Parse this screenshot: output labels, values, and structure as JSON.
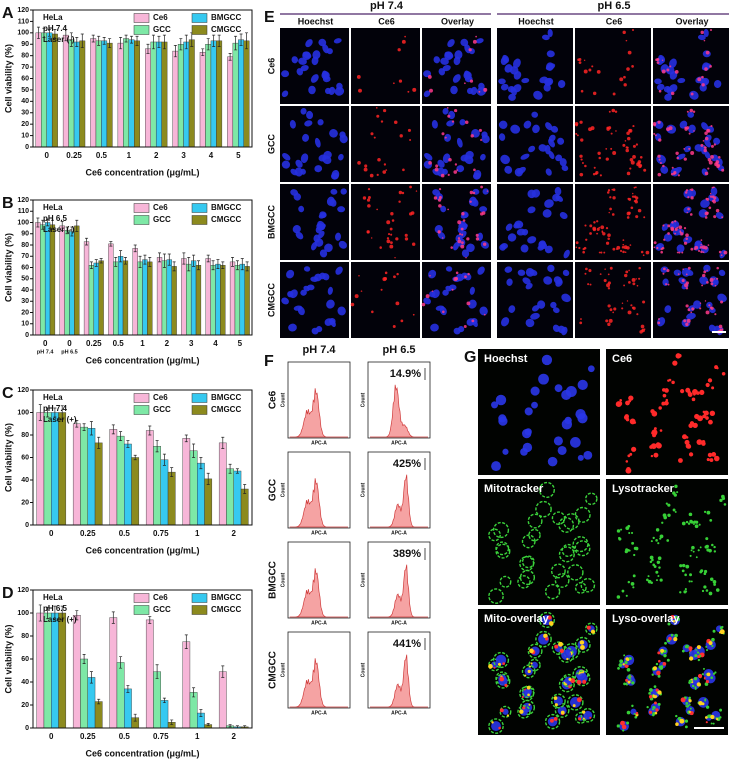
{
  "chart_data": [
    {
      "type": "bar",
      "panel": "A",
      "annotations": [
        "HeLa",
        "pH 7.4",
        "Laser (-)"
      ],
      "ylabel": "Cell viability (%)",
      "xlabel": "Ce6 concentration (μg/mL)",
      "categories": [
        "0",
        "0.25",
        "0.5",
        "1",
        "2",
        "3",
        "4",
        "5"
      ],
      "ylim": [
        0,
        120
      ],
      "yticks": [
        0,
        10,
        20,
        30,
        40,
        50,
        60,
        70,
        80,
        90,
        100,
        110,
        120
      ],
      "legend": "upper right",
      "series": [
        {
          "name": "Ce6",
          "color": "#f7b6d8",
          "values": [
            100,
            98,
            95,
            91,
            86,
            84,
            83,
            79
          ],
          "errors": [
            5,
            5,
            3,
            5,
            4,
            5,
            3,
            3
          ]
        },
        {
          "name": "GCC",
          "color": "#7ee8a6",
          "values": [
            100,
            94,
            93,
            95,
            92,
            90,
            90,
            91
          ],
          "errors": [
            4,
            6,
            4,
            3,
            6,
            5,
            5,
            6
          ]
        },
        {
          "name": "BMGCC",
          "color": "#36c9f0",
          "values": [
            100,
            92,
            93,
            94,
            92,
            92,
            93,
            94
          ],
          "errors": [
            3,
            4,
            3,
            3,
            5,
            6,
            5,
            5
          ]
        },
        {
          "name": "CMGCC",
          "color": "#8c8a1e",
          "values": [
            99,
            93,
            91,
            93,
            92,
            94,
            93,
            93
          ],
          "errors": [
            4,
            6,
            4,
            4,
            6,
            6,
            5,
            7
          ]
        }
      ]
    },
    {
      "type": "bar",
      "panel": "B",
      "annotations": [
        "HeLa",
        "pH 6.5",
        "Laser (-)"
      ],
      "ylabel": "Cell viability (%)",
      "xlabel": "Ce6 concentration (μg/mL)",
      "categories": [
        "0",
        "0",
        "0.25",
        "0.5",
        "1",
        "2",
        "3",
        "4",
        "5"
      ],
      "category_notes": [
        "pH 7.4",
        "pH 6.5",
        null,
        null,
        null,
        null,
        null,
        null,
        null
      ],
      "ylim": [
        0,
        120
      ],
      "yticks": [
        0,
        10,
        20,
        30,
        40,
        50,
        60,
        70,
        80,
        90,
        100,
        110,
        120
      ],
      "legend": "upper right",
      "series": [
        {
          "name": "Ce6",
          "color": "#f7b6d8",
          "values": [
            100,
            97,
            83,
            81,
            77,
            69,
            68,
            68,
            65
          ],
          "errors": [
            4,
            4,
            3,
            2,
            3,
            4,
            5,
            3,
            4
          ]
        },
        {
          "name": "GCC",
          "color": "#7ee8a6",
          "values": [
            98,
            93,
            62,
            65,
            65,
            66,
            63,
            62,
            62
          ],
          "errors": [
            4,
            3,
            3,
            4,
            5,
            6,
            6,
            4,
            4
          ]
        },
        {
          "name": "BMGCC",
          "color": "#36c9f0",
          "values": [
            100,
            92,
            64,
            70,
            67,
            67,
            66,
            63,
            63
          ],
          "errors": [
            3,
            4,
            3,
            5,
            4,
            5,
            5,
            4,
            5
          ]
        },
        {
          "name": "CMGCC",
          "color": "#8c8a1e",
          "values": [
            98,
            97,
            66,
            66,
            65,
            61,
            62,
            62,
            61
          ],
          "errors": [
            4,
            5,
            2,
            3,
            4,
            4,
            4,
            3,
            4
          ]
        }
      ]
    },
    {
      "type": "bar",
      "panel": "C",
      "annotations": [
        "HeLa",
        "pH 7.4",
        "Laser (+)"
      ],
      "ylabel": "Cell viability (%)",
      "xlabel": "Ce6 concentration (μg/mL)",
      "categories": [
        "0",
        "0.25",
        "0.5",
        "0.75",
        "1",
        "2"
      ],
      "ylim": [
        0,
        120
      ],
      "yticks": [
        0,
        20,
        40,
        60,
        80,
        100,
        120
      ],
      "legend": "upper right",
      "series": [
        {
          "name": "Ce6",
          "color": "#f7b6d8",
          "values": [
            100,
            90,
            85,
            84,
            77,
            73
          ],
          "errors": [
            7,
            3,
            4,
            4,
            3,
            5
          ]
        },
        {
          "name": "GCC",
          "color": "#7ee8a6",
          "values": [
            100,
            87,
            79,
            70,
            66,
            50
          ],
          "errors": [
            4,
            3,
            4,
            5,
            6,
            4
          ]
        },
        {
          "name": "BMGCC",
          "color": "#36c9f0",
          "values": [
            100,
            86,
            72,
            58,
            55,
            48
          ],
          "errors": [
            4,
            6,
            3,
            5,
            5,
            2
          ]
        },
        {
          "name": "CMGCC",
          "color": "#8c8a1e",
          "values": [
            100,
            73,
            60,
            47,
            41,
            32
          ],
          "errors": [
            6,
            5,
            2,
            4,
            5,
            4
          ]
        }
      ]
    },
    {
      "type": "bar",
      "panel": "D",
      "annotations": [
        "HeLa",
        "pH 6.5",
        "Laser (+)"
      ],
      "ylabel": "Cell viability (%)",
      "xlabel": "Ce6 concentration (μg/mL)",
      "categories": [
        "0",
        "0.25",
        "0.5",
        "0.75",
        "1",
        "2"
      ],
      "ylim": [
        0,
        120
      ],
      "yticks": [
        0,
        20,
        40,
        60,
        80,
        100,
        120
      ],
      "legend": "upper right",
      "series": [
        {
          "name": "Ce6",
          "color": "#f7b6d8",
          "values": [
            100,
            98,
            96,
            94,
            75,
            49
          ],
          "errors": [
            7,
            4,
            5,
            3,
            6,
            5
          ]
        },
        {
          "name": "GCC",
          "color": "#7ee8a6",
          "values": [
            100,
            60,
            57,
            49,
            31,
            2
          ],
          "errors": [
            5,
            4,
            5,
            6,
            4,
            1
          ]
        },
        {
          "name": "BMGCC",
          "color": "#36c9f0",
          "values": [
            100,
            44,
            34,
            24,
            13,
            1
          ],
          "errors": [
            6,
            5,
            3,
            2,
            3,
            1
          ]
        },
        {
          "name": "CMGCC",
          "color": "#8c8a1e",
          "values": [
            100,
            23,
            9,
            5,
            3,
            1
          ],
          "errors": [
            6,
            2,
            3,
            2,
            1,
            1
          ]
        }
      ]
    }
  ],
  "panel_e": {
    "label": "E",
    "groups": [
      {
        "title": "pH 7.4",
        "columns": [
          "Hoechst",
          "Ce6",
          "Overlay"
        ]
      },
      {
        "title": "pH 6.5",
        "columns": [
          "Hoechst",
          "Ce6",
          "Overlay"
        ]
      }
    ],
    "rows": [
      "Ce6",
      "GCC",
      "BMGCC",
      "CMGCC"
    ]
  },
  "panel_f": {
    "label": "F",
    "columns": [
      "pH 7.4",
      "pH 6.5"
    ],
    "rows": [
      "Ce6",
      "GCC",
      "BMGCC",
      "CMGCC"
    ],
    "percentages": [
      "14.9%",
      "425%",
      "389%",
      "441%"
    ],
    "ylabel": "Count",
    "xlabel": "APC-A"
  },
  "panel_g": {
    "label": "G",
    "images": [
      "Hoechst",
      "Ce6",
      "Mitotracker",
      "Lysotracker",
      "Mito-overlay",
      "Lyso-overlay"
    ]
  }
}
